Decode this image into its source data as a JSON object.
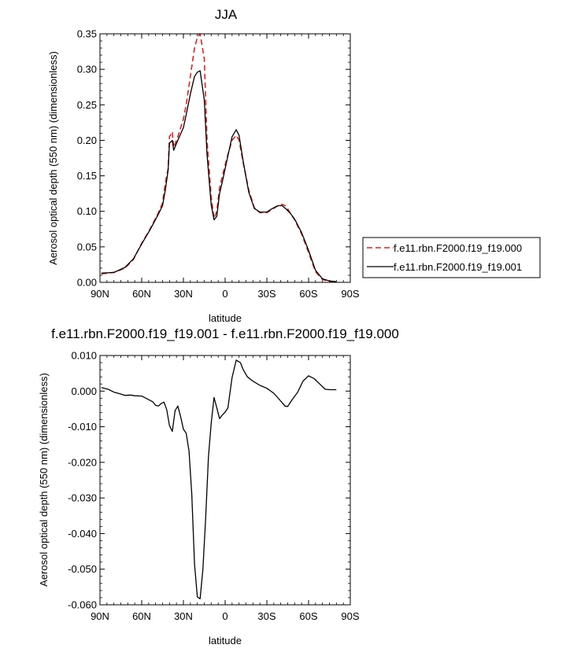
{
  "chart_data": [
    {
      "type": "line",
      "title": "JJA",
      "xlabel": "latitude",
      "ylabel": "Aerosol optical depth (550 nm) (dimensionless)",
      "xlim": [
        90,
        -90
      ],
      "ylim": [
        0.0,
        0.35
      ],
      "x_ticks": [
        90,
        60,
        30,
        0,
        -30,
        -60,
        -90
      ],
      "x_tick_labels": [
        "90N",
        "60N",
        "30N",
        "0",
        "30S",
        "60S",
        "90S"
      ],
      "y_ticks": [
        0.0,
        0.05,
        0.1,
        0.15,
        0.2,
        0.25,
        0.3,
        0.35
      ],
      "y_tick_labels": [
        "0.00",
        "0.05",
        "0.10",
        "0.15",
        "0.20",
        "0.25",
        "0.30",
        "0.35"
      ],
      "grid": false,
      "legend_position": "outside-right",
      "series": [
        {
          "name": "f.e11.rbn.F2000.f19_f19.000",
          "color": "#dd2222",
          "style": "dashed",
          "x": [
            89,
            80,
            72,
            66,
            60,
            54,
            48,
            45,
            43,
            41,
            40,
            38,
            37,
            34,
            30,
            28,
            25,
            22,
            20,
            18,
            15,
            13,
            10,
            8,
            6,
            4,
            2,
            0,
            -2,
            -5,
            -8,
            -10,
            -13,
            -17,
            -21,
            -25,
            -30,
            -34,
            -38,
            -41,
            -44,
            -47,
            -50,
            -55,
            -60,
            -65,
            -70,
            -75,
            -80
          ],
          "values": [
            0.012,
            0.014,
            0.02,
            0.032,
            0.055,
            0.075,
            0.098,
            0.112,
            0.14,
            0.16,
            0.205,
            0.212,
            0.19,
            0.205,
            0.23,
            0.25,
            0.29,
            0.33,
            0.345,
            0.35,
            0.315,
            0.2,
            0.12,
            0.09,
            0.1,
            0.133,
            0.15,
            0.165,
            0.18,
            0.2,
            0.207,
            0.2,
            0.168,
            0.13,
            0.105,
            0.098,
            0.098,
            0.103,
            0.108,
            0.11,
            0.107,
            0.097,
            0.088,
            0.068,
            0.042,
            0.015,
            0.004,
            0.001,
            0.001
          ]
        },
        {
          "name": "f.e11.rbn.F2000.f19_f19.001",
          "color": "#000000",
          "style": "solid",
          "x": [
            89,
            80,
            72,
            66,
            60,
            54,
            48,
            45,
            43,
            41,
            40,
            38,
            37,
            34,
            30,
            28,
            25,
            22,
            20,
            18,
            15,
            13,
            10,
            8,
            6,
            4,
            2,
            0,
            -2,
            -5,
            -8,
            -10,
            -13,
            -17,
            -21,
            -25,
            -30,
            -34,
            -38,
            -41,
            -44,
            -47,
            -50,
            -55,
            -60,
            -65,
            -70,
            -75,
            -80
          ],
          "values": [
            0.013,
            0.014,
            0.021,
            0.033,
            0.054,
            0.074,
            0.096,
            0.108,
            0.13,
            0.158,
            0.196,
            0.2,
            0.186,
            0.2,
            0.218,
            0.236,
            0.265,
            0.29,
            0.296,
            0.298,
            0.257,
            0.18,
            0.109,
            0.088,
            0.093,
            0.125,
            0.142,
            0.16,
            0.178,
            0.205,
            0.215,
            0.207,
            0.17,
            0.127,
            0.104,
            0.099,
            0.099,
            0.104,
            0.108,
            0.108,
            0.103,
            0.097,
            0.089,
            0.07,
            0.045,
            0.017,
            0.005,
            0.002,
            0.001
          ]
        }
      ]
    },
    {
      "type": "line",
      "title": "f.e11.rbn.F2000.f19_f19.001 - f.e11.rbn.F2000.f19_f19.000",
      "xlabel": "latitude",
      "ylabel": "Aerosol optical depth (550 nm) (dimensionless)",
      "xlim": [
        90,
        -90
      ],
      "ylim": [
        -0.06,
        0.01
      ],
      "x_ticks": [
        90,
        60,
        30,
        0,
        -30,
        -60,
        -90
      ],
      "x_tick_labels": [
        "90N",
        "60N",
        "30N",
        "0",
        "30S",
        "60S",
        "90S"
      ],
      "y_ticks": [
        0.01,
        0.0,
        -0.01,
        -0.02,
        -0.03,
        -0.04,
        -0.05,
        -0.06
      ],
      "y_tick_labels": [
        "0.010",
        "0.000",
        "-0.010",
        "-0.020",
        "-0.030",
        "-0.040",
        "-0.050",
        "-0.060"
      ],
      "grid": false,
      "series": [
        {
          "color": "#000000",
          "style": "solid",
          "x": [
            89,
            84,
            80,
            76,
            72,
            68,
            65,
            60,
            56,
            52,
            50,
            48,
            46,
            44,
            42,
            40,
            38,
            36,
            34,
            32,
            30,
            28,
            26,
            24,
            22,
            20,
            18,
            16,
            14,
            12,
            10,
            8,
            6,
            4,
            2,
            0,
            -2,
            -5,
            -8,
            -11,
            -13,
            -16,
            -20,
            -25,
            -30,
            -35,
            -40,
            -43,
            -45,
            -48,
            -52,
            -56,
            -60,
            -64,
            -68,
            -72,
            -76,
            -80
          ],
          "values": [
            0.001,
            0.0005,
            -0.0003,
            -0.0007,
            -0.0012,
            -0.0011,
            -0.0013,
            -0.0014,
            -0.0022,
            -0.003,
            -0.004,
            -0.0042,
            -0.0035,
            -0.0031,
            -0.0052,
            -0.0097,
            -0.0113,
            -0.0055,
            -0.0042,
            -0.0072,
            -0.0107,
            -0.0118,
            -0.0168,
            -0.0288,
            -0.0485,
            -0.0578,
            -0.0583,
            -0.0502,
            -0.0355,
            -0.0185,
            -0.009,
            -0.0018,
            -0.0047,
            -0.0077,
            -0.0067,
            -0.0059,
            -0.0047,
            0.0038,
            0.0087,
            0.008,
            0.006,
            0.004,
            0.0028,
            0.0016,
            0.0008,
            -0.0006,
            -0.0028,
            -0.0042,
            -0.0043,
            -0.0025,
            -0.0004,
            0.0028,
            0.0043,
            0.0035,
            0.002,
            0.0005,
            0.0004,
            0.0004
          ]
        }
      ]
    }
  ]
}
